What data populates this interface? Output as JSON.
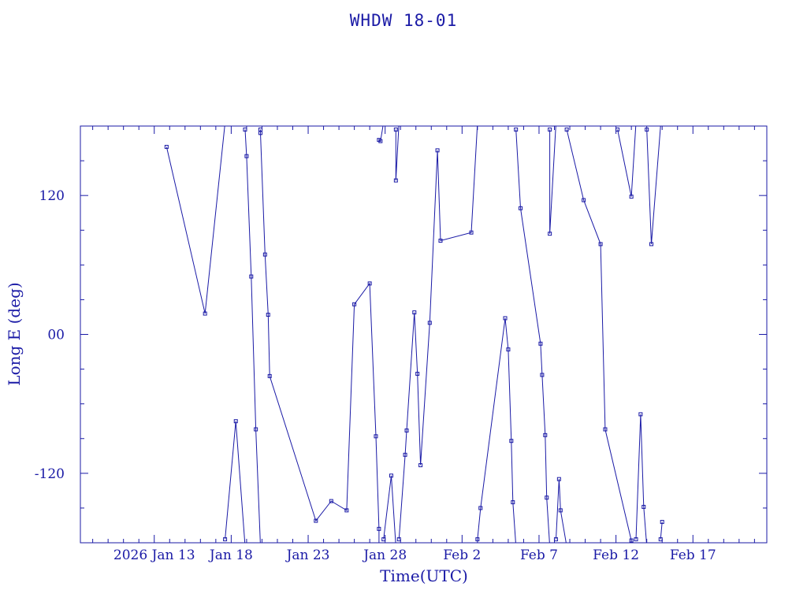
{
  "chart_data": {
    "type": "line",
    "title": "WHDW 18-01",
    "xlabel": "Time(UTC)",
    "ylabel": "Long E (deg)",
    "x_tick_labels": [
      "2026 Jan 13",
      "Jan 18",
      "Jan 23",
      "Jan 28",
      "Feb  2",
      "Feb  7",
      "Feb 12",
      "Feb 17"
    ],
    "x_tick_values": [
      13,
      18,
      23,
      28,
      33,
      38,
      43,
      48
    ],
    "x_unit": "days since 2026-01-00 (Jan 1 = 1)",
    "xlim": [
      8.2,
      52.8
    ],
    "y_tick_labels": [
      "-120",
      "00",
      "120"
    ],
    "y_tick_values": [
      -120,
      0,
      120
    ],
    "ylim": [
      -180,
      180
    ],
    "wraps_at": [
      -180,
      180
    ],
    "markers": "small square",
    "grid": false,
    "legend": "none",
    "color": "#1a1aa6",
    "series": [
      {
        "name": "",
        "points": [
          [
            13.8,
            162
          ],
          [
            16.3,
            18
          ],
          [
            17.6,
            183
          ],
          [
            17.6,
            -177
          ],
          [
            18.3,
            -75
          ],
          [
            18.9,
            -183
          ],
          [
            18.9,
            177
          ],
          [
            19.0,
            154
          ],
          [
            19.3,
            50
          ],
          [
            19.6,
            -82
          ],
          [
            19.9,
            -183
          ],
          [
            19.9,
            177
          ],
          [
            19.9,
            174
          ],
          [
            20.2,
            69
          ],
          [
            20.4,
            17
          ],
          [
            20.5,
            -36
          ],
          [
            23.5,
            -161
          ],
          [
            24.5,
            -144
          ],
          [
            25.5,
            -152
          ],
          [
            26.0,
            26
          ],
          [
            27.0,
            44
          ],
          [
            27.4,
            -88
          ],
          [
            27.6,
            -168
          ],
          [
            27.6,
            -192
          ],
          [
            27.6,
            168
          ],
          [
            27.7,
            167
          ],
          [
            27.9,
            183
          ],
          [
            27.9,
            -177
          ],
          [
            28.4,
            -122
          ],
          [
            28.7,
            -183
          ],
          [
            28.7,
            177
          ],
          [
            28.7,
            133
          ],
          [
            28.9,
            183
          ],
          [
            28.9,
            -177
          ],
          [
            29.3,
            -104
          ],
          [
            29.4,
            -83
          ],
          [
            29.9,
            19
          ],
          [
            30.1,
            -34
          ],
          [
            30.3,
            -113
          ],
          [
            30.9,
            10
          ],
          [
            31.4,
            159
          ],
          [
            31.6,
            81
          ],
          [
            33.6,
            88
          ],
          [
            34.0,
            183
          ],
          [
            34.0,
            -177
          ],
          [
            34.2,
            -150
          ],
          [
            35.8,
            14
          ],
          [
            36.0,
            -13
          ],
          [
            36.2,
            -92
          ],
          [
            36.3,
            -145
          ],
          [
            36.5,
            -183
          ],
          [
            36.5,
            177
          ],
          [
            36.8,
            109
          ],
          [
            38.1,
            -8
          ],
          [
            38.2,
            -35
          ],
          [
            38.4,
            -87
          ],
          [
            38.5,
            -141
          ],
          [
            38.7,
            -183
          ],
          [
            38.7,
            177
          ],
          [
            38.7,
            87
          ],
          [
            39.1,
            183
          ],
          [
            39.1,
            -177
          ],
          [
            39.3,
            -125
          ],
          [
            39.4,
            -152
          ],
          [
            39.8,
            -183
          ],
          [
            39.8,
            177
          ],
          [
            40.9,
            116
          ],
          [
            42.0,
            78
          ],
          [
            42.3,
            -82
          ],
          [
            44.0,
            -178
          ]
        ]
      },
      {
        "name": "",
        "points": [
          [
            43.1,
            177
          ],
          [
            44.0,
            119
          ],
          [
            44.3,
            183
          ],
          [
            44.3,
            -177
          ],
          [
            44.6,
            -69
          ],
          [
            44.8,
            -149
          ],
          [
            45.0,
            -183
          ],
          [
            45.0,
            177
          ],
          [
            45.3,
            78
          ],
          [
            45.9,
            180
          ]
        ]
      },
      {
        "name": "",
        "points": [
          [
            45.9,
            -177
          ],
          [
            46.0,
            -162
          ]
        ]
      }
    ]
  }
}
